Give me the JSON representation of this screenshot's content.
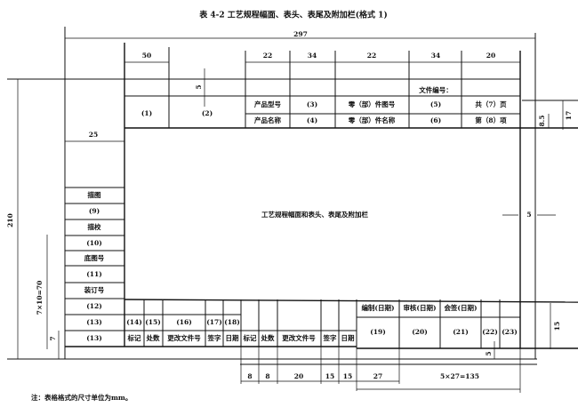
{
  "title": "表 4-2   工艺规程幅面、表头、表尾及附加栏(格式 1)",
  "center_label": "工艺规程幅面和表头、表尾及附加栏",
  "note": "注：表格格式的尺寸单位为mm。",
  "dimensions": {
    "total_width": "297",
    "total_height": "210",
    "left_margin": "25",
    "header_cols": [
      "50",
      "22",
      "34",
      "22",
      "34",
      "20"
    ],
    "header_gap": "5",
    "header_height": "17",
    "header_row": "8.5",
    "right_gap": "5",
    "left_column": "7×10=70",
    "left_row": "7",
    "footer_height": "15",
    "footer_gap": "5",
    "footer_cols": [
      "8",
      "8",
      "20",
      "15",
      "15",
      "27"
    ],
    "footer_sign": "5×27=135"
  },
  "header": {
    "file_no": "文件编号：",
    "cell1": "(1)",
    "cell2": "(2)",
    "row1": [
      "产品型号",
      "(3)",
      "零（部）件图号",
      "(5)",
      "共（7）页"
    ],
    "row2": [
      "产品名称",
      "(4)",
      "零（部）件名称",
      "(6)",
      "第（8）项"
    ]
  },
  "side_column": [
    "描图",
    "(9)",
    "描校",
    "(10)",
    "底图号",
    "(11)",
    "装订号",
    "(12)",
    "(13)",
    "(13)"
  ],
  "footer": {
    "numbers": [
      "(14)",
      "(15)",
      "(16)",
      "(17)",
      "(18)"
    ],
    "labels": [
      "标记",
      "处数",
      "更改文件号",
      "签字",
      "日期",
      "标记",
      "处数",
      "更改文件号",
      "签字",
      "日期"
    ],
    "sign_labels": [
      "编制(日期)",
      "审核(日期)",
      "会签(日期)"
    ],
    "sign_numbers": [
      "(19)",
      "(20)",
      "(21)",
      "(22)",
      "(23)"
    ]
  }
}
